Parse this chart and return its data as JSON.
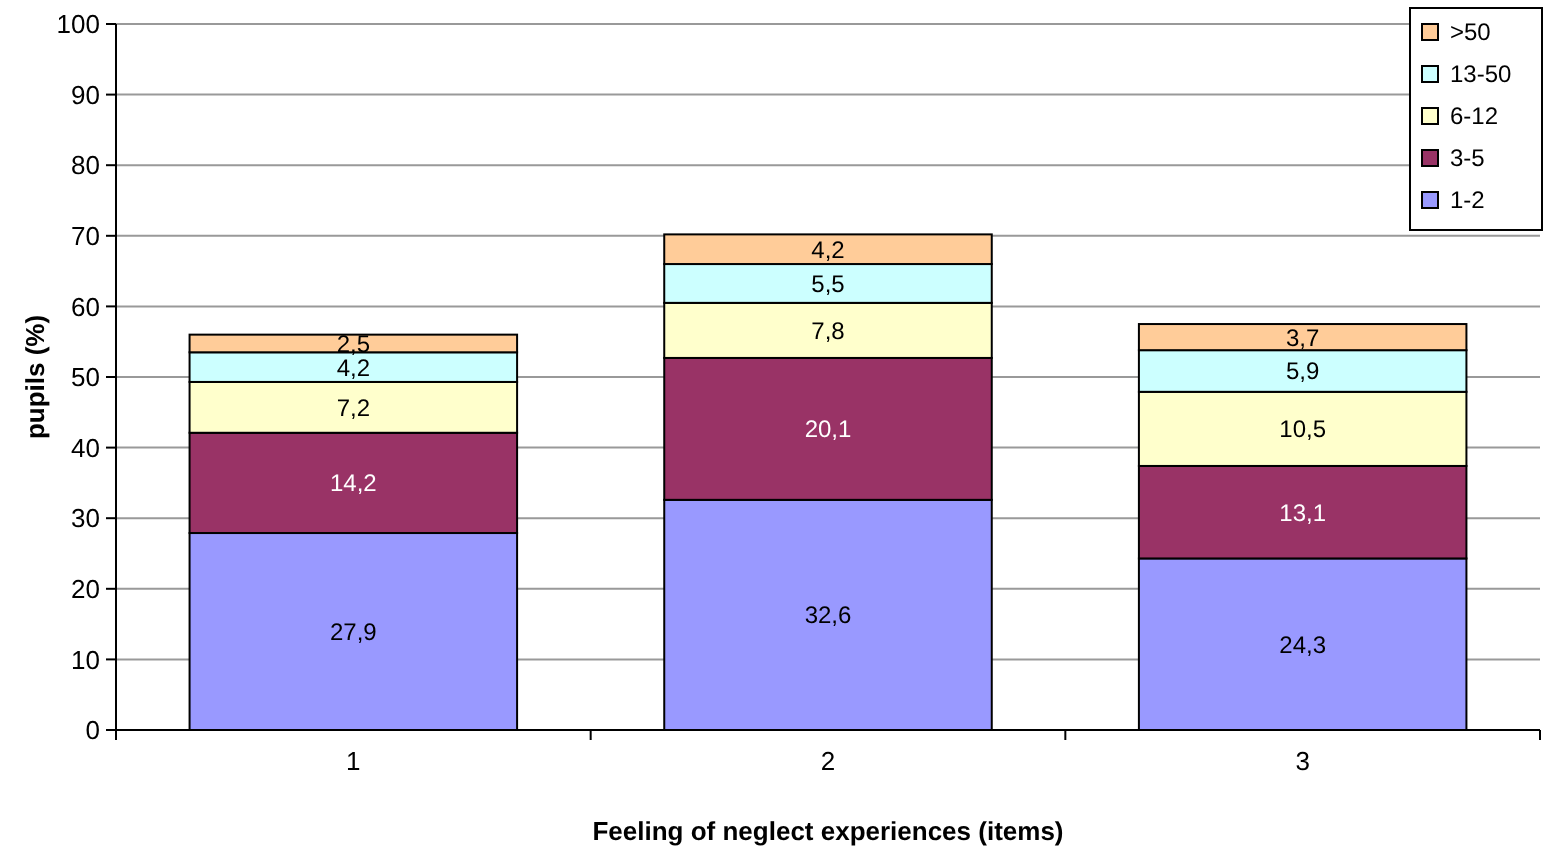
{
  "chart_data": {
    "type": "bar",
    "stacked": true,
    "xlabel": "Feeling of neglect experiences (items)",
    "ylabel": "pupils (%)",
    "categories": [
      "1",
      "2",
      "3"
    ],
    "series": [
      {
        "name": "1-2",
        "color": "#9999ff",
        "values": [
          27.9,
          32.6,
          24.3
        ],
        "value_labels": [
          "27,9",
          "32,6",
          "24,3"
        ]
      },
      {
        "name": "3-5",
        "color": "#993366",
        "values": [
          14.2,
          20.1,
          13.1
        ],
        "value_labels": [
          "14,2",
          "20,1",
          "13,1"
        ]
      },
      {
        "name": "6-12",
        "color": "#ffffcc",
        "values": [
          7.2,
          7.8,
          10.5
        ],
        "value_labels": [
          "7,2",
          "7,8",
          "10,5"
        ]
      },
      {
        "name": "13-50",
        "color": "#ccffff",
        "values": [
          4.2,
          5.5,
          5.9
        ],
        "value_labels": [
          "4,2",
          "5,5",
          "5,9"
        ]
      },
      {
        "name": ">50",
        "color": "#ffcc99",
        "values": [
          2.5,
          4.2,
          3.7
        ],
        "value_labels": [
          "2,5",
          "4,2",
          "3,7"
        ]
      }
    ],
    "ylim": [
      0,
      100
    ],
    "yticks": [
      0,
      10,
      20,
      30,
      40,
      50,
      60,
      70,
      80,
      90,
      100
    ],
    "grid": "y",
    "legend": "top right"
  }
}
